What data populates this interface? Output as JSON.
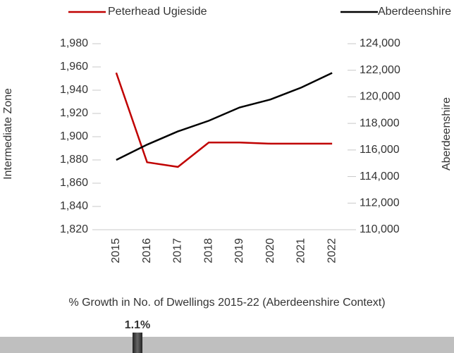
{
  "chart_data": {
    "type": "line",
    "categories": [
      "2015",
      "2016",
      "2017",
      "2018",
      "2019",
      "2020",
      "2021",
      "2022"
    ],
    "series": [
      {
        "name": "Peterhead Ugieside",
        "color": "#c00000",
        "values": [
          1955,
          1878,
          1874,
          1895,
          1895,
          1894,
          1894,
          1894
        ]
      },
      {
        "name": "Aberdeenshire",
        "color": "#000000",
        "axis": "y2",
        "values": [
          115250,
          116400,
          117400,
          118200,
          119200,
          119800,
          120700,
          121800
        ]
      }
    ],
    "y_label": "Intermediate Zone",
    "y2_label": "Aberdeenshire",
    "ylim": [
      1820,
      1980
    ],
    "yticks": [
      {
        "value": 1820,
        "label": "1,820"
      },
      {
        "value": 1840,
        "label": "1,840"
      },
      {
        "value": 1860,
        "label": "1,860"
      },
      {
        "value": 1880,
        "label": "1,880"
      },
      {
        "value": 1900,
        "label": "1,900"
      },
      {
        "value": 1920,
        "label": "1,920"
      },
      {
        "value": 1940,
        "label": "1,940"
      },
      {
        "value": 1960,
        "label": "1,960"
      },
      {
        "value": 1980,
        "label": "1,980"
      }
    ],
    "y2lim": [
      110000,
      124000
    ],
    "y2ticks": [
      {
        "value": 110000,
        "label": "110,000"
      },
      {
        "value": 112000,
        "label": "112,000"
      },
      {
        "value": 114000,
        "label": "114,000"
      },
      {
        "value": 116000,
        "label": "116,000"
      },
      {
        "value": 118000,
        "label": "118,000"
      },
      {
        "value": 120000,
        "label": "120,000"
      },
      {
        "value": 122000,
        "label": "122,000"
      },
      {
        "value": 124000,
        "label": "124,000"
      }
    ],
    "grid": false,
    "legend": "top"
  },
  "growth_indicator": {
    "title": "% Growth in No. of Dwellings 2015-22 (Aberdeenshire Context)",
    "value": 1.1,
    "value_label": "1.1%"
  }
}
